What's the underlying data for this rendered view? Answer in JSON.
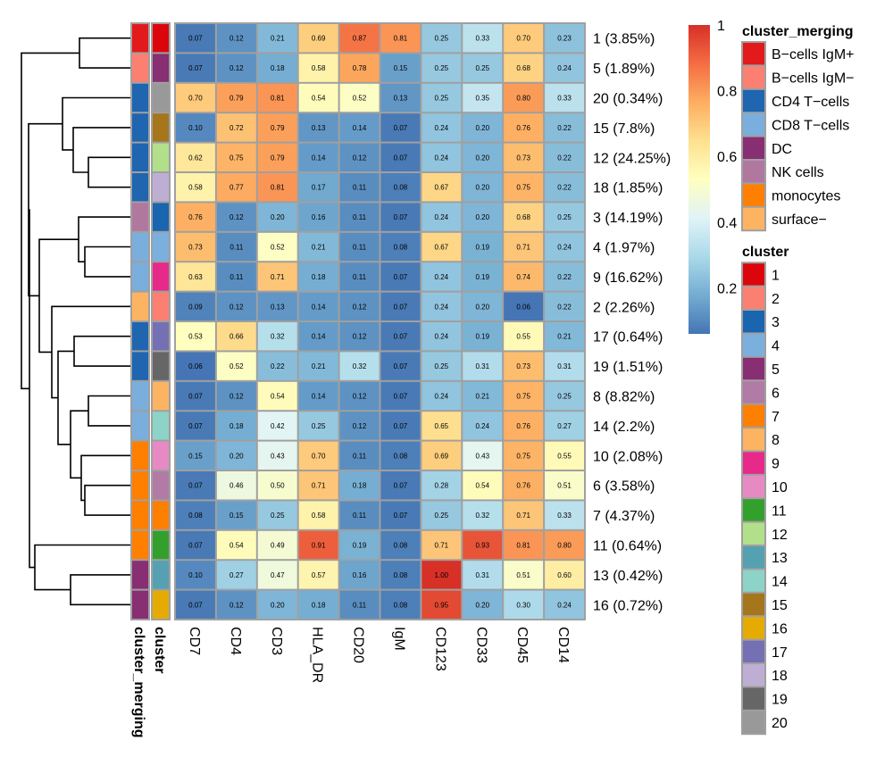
{
  "chart_data": {
    "type": "heatmap",
    "title": "",
    "columns": [
      "CD7",
      "CD4",
      "CD3",
      "HLA_DR",
      "CD20",
      "IgM",
      "CD123",
      "CD33",
      "CD45",
      "CD14"
    ],
    "rows": [
      {
        "cluster": "1",
        "label": "1 (3.85%)",
        "merging": "B-cells IgM+",
        "values": [
          0.07,
          0.12,
          0.21,
          0.69,
          0.87,
          0.81,
          0.25,
          0.33,
          0.7,
          0.23
        ]
      },
      {
        "cluster": "5",
        "label": "5 (1.89%)",
        "merging": "B-cells IgM-",
        "values": [
          0.07,
          0.12,
          0.18,
          0.58,
          0.78,
          0.15,
          0.25,
          0.25,
          0.68,
          0.24
        ]
      },
      {
        "cluster": "20",
        "label": "20 (0.34%)",
        "merging": "CD4 T-cells",
        "values": [
          0.7,
          0.79,
          0.81,
          0.54,
          0.52,
          0.13,
          0.25,
          0.35,
          0.8,
          0.33
        ]
      },
      {
        "cluster": "15",
        "label": "15 (7.8%)",
        "merging": "CD4 T-cells",
        "values": [
          0.1,
          0.72,
          0.79,
          0.13,
          0.14,
          0.07,
          0.24,
          0.2,
          0.76,
          0.22
        ]
      },
      {
        "cluster": "12",
        "label": "12 (24.25%)",
        "merging": "CD4 T-cells",
        "values": [
          0.62,
          0.75,
          0.79,
          0.14,
          0.12,
          0.07,
          0.24,
          0.2,
          0.73,
          0.22
        ]
      },
      {
        "cluster": "18",
        "label": "18 (1.85%)",
        "merging": "CD4 T-cells",
        "values": [
          0.58,
          0.77,
          0.81,
          0.17,
          0.11,
          0.08,
          0.67,
          0.2,
          0.75,
          0.22
        ]
      },
      {
        "cluster": "3",
        "label": "3 (14.19%)",
        "merging": "NK cells",
        "values": [
          0.76,
          0.12,
          0.2,
          0.16,
          0.11,
          0.07,
          0.24,
          0.2,
          0.68,
          0.25
        ]
      },
      {
        "cluster": "4",
        "label": "4 (1.97%)",
        "merging": "CD8 T-cells",
        "values": [
          0.73,
          0.11,
          0.52,
          0.21,
          0.11,
          0.08,
          0.67,
          0.19,
          0.71,
          0.24
        ]
      },
      {
        "cluster": "9",
        "label": "9 (16.62%)",
        "merging": "CD8 T-cells",
        "values": [
          0.63,
          0.11,
          0.71,
          0.18,
          0.11,
          0.07,
          0.24,
          0.19,
          0.74,
          0.22
        ]
      },
      {
        "cluster": "2",
        "label": "2 (2.26%)",
        "merging": "surface-",
        "values": [
          0.09,
          0.12,
          0.13,
          0.14,
          0.12,
          0.07,
          0.24,
          0.2,
          0.06,
          0.22
        ]
      },
      {
        "cluster": "17",
        "label": "17 (0.64%)",
        "merging": "CD4 T-cells",
        "values": [
          0.53,
          0.66,
          0.32,
          0.14,
          0.12,
          0.07,
          0.24,
          0.19,
          0.55,
          0.21
        ]
      },
      {
        "cluster": "19",
        "label": "19 (1.51%)",
        "merging": "CD4 T-cells",
        "values": [
          0.06,
          0.52,
          0.22,
          0.21,
          0.32,
          0.07,
          0.25,
          0.31,
          0.73,
          0.31
        ]
      },
      {
        "cluster": "8",
        "label": "8 (8.82%)",
        "merging": "CD8 T-cells",
        "values": [
          0.07,
          0.12,
          0.54,
          0.14,
          0.12,
          0.07,
          0.24,
          0.21,
          0.75,
          0.25
        ]
      },
      {
        "cluster": "14",
        "label": "14 (2.2%)",
        "merging": "CD8 T-cells",
        "values": [
          0.07,
          0.18,
          0.42,
          0.25,
          0.12,
          0.07,
          0.65,
          0.24,
          0.76,
          0.27
        ]
      },
      {
        "cluster": "10",
        "label": "10 (2.08%)",
        "merging": "monocytes",
        "values": [
          0.15,
          0.2,
          0.43,
          0.7,
          0.11,
          0.08,
          0.69,
          0.43,
          0.75,
          0.55
        ]
      },
      {
        "cluster": "6",
        "label": "6 (3.58%)",
        "merging": "monocytes",
        "values": [
          0.07,
          0.46,
          0.5,
          0.71,
          0.18,
          0.07,
          0.28,
          0.54,
          0.76,
          0.51
        ]
      },
      {
        "cluster": "7",
        "label": "7 (4.37%)",
        "merging": "monocytes",
        "values": [
          0.08,
          0.15,
          0.25,
          0.58,
          0.11,
          0.07,
          0.25,
          0.32,
          0.71,
          0.33
        ]
      },
      {
        "cluster": "11",
        "label": "11 (0.64%)",
        "merging": "monocytes",
        "values": [
          0.07,
          0.54,
          0.49,
          0.91,
          0.19,
          0.08,
          0.71,
          0.93,
          0.81,
          0.8
        ]
      },
      {
        "cluster": "13",
        "label": "13 (0.42%)",
        "merging": "DC",
        "values": [
          0.1,
          0.27,
          0.47,
          0.57,
          0.16,
          0.08,
          1.0,
          0.31,
          0.51,
          0.6
        ]
      },
      {
        "cluster": "16",
        "label": "16 (0.72%)",
        "merging": "DC",
        "values": [
          0.07,
          0.12,
          0.2,
          0.18,
          0.11,
          0.08,
          0.95,
          0.2,
          0.3,
          0.24
        ]
      }
    ],
    "color_scale": {
      "range": [
        0.06,
        1.0
      ],
      "ticks": [
        1,
        0.8,
        0.6,
        0.4,
        0.2
      ],
      "tick_labels": [
        "1",
        "0.8",
        "0.6",
        "0.4",
        "0.2"
      ],
      "palette": [
        "#4575b4",
        "#74add1",
        "#abd9e9",
        "#e0f3f8",
        "#ffffbf",
        "#fee090",
        "#fdae61",
        "#f46d43",
        "#d73027"
      ]
    },
    "annotation_labels": [
      "cluster_merging",
      "cluster"
    ],
    "legends": [
      {
        "title": "cluster_merging",
        "items": [
          {
            "label": "B−cells IgM+",
            "key": "B-cells IgM+",
            "color": "#e31a1c"
          },
          {
            "label": "B−cells IgM−",
            "key": "B-cells IgM-",
            "color": "#fb8072"
          },
          {
            "label": "CD4 T−cells",
            "key": "CD4 T-cells",
            "color": "#1f65b0"
          },
          {
            "label": "CD8 T−cells",
            "key": "CD8 T-cells",
            "color": "#7aaedc"
          },
          {
            "label": "DC",
            "key": "DC",
            "color": "#882e72"
          },
          {
            "label": "NK cells",
            "key": "NK cells",
            "color": "#b1789f"
          },
          {
            "label": "monocytes",
            "key": "monocytes",
            "color": "#ff7f00"
          },
          {
            "label": "surface−",
            "key": "surface-",
            "color": "#fdb462"
          }
        ]
      },
      {
        "title": "cluster",
        "items": [
          {
            "label": "1",
            "color": "#dc050c"
          },
          {
            "label": "2",
            "color": "#fb8072"
          },
          {
            "label": "3",
            "color": "#1965b0"
          },
          {
            "label": "4",
            "color": "#7bafde"
          },
          {
            "label": "5",
            "color": "#882e72"
          },
          {
            "label": "6",
            "color": "#b17ba6"
          },
          {
            "label": "7",
            "color": "#ff7f00"
          },
          {
            "label": "8",
            "color": "#fdb462"
          },
          {
            "label": "9",
            "color": "#e7298a"
          },
          {
            "label": "10",
            "color": "#e78ac3"
          },
          {
            "label": "11",
            "color": "#33a02c"
          },
          {
            "label": "12",
            "color": "#b2df8a"
          },
          {
            "label": "13",
            "color": "#55a1b1"
          },
          {
            "label": "14",
            "color": "#8dd3c7"
          },
          {
            "label": "15",
            "color": "#a6761d"
          },
          {
            "label": "16",
            "color": "#e6ab02"
          },
          {
            "label": "17",
            "color": "#7570b3"
          },
          {
            "label": "18",
            "color": "#beaed4"
          },
          {
            "label": "19",
            "color": "#666666"
          },
          {
            "label": "20",
            "color": "#999999"
          }
        ]
      }
    ],
    "dendrogram": {
      "side": "left",
      "merges": [
        [
          0,
          1
        ],
        [
          4,
          5
        ],
        [
          3,
          "m1"
        ],
        [
          2,
          "m2"
        ],
        [
          7,
          8
        ],
        [
          6,
          "m4"
        ],
        [
          10,
          11
        ],
        [
          12,
          13
        ],
        [
          15,
          16
        ],
        [
          14,
          "m8"
        ],
        [
          "m7",
          "m9"
        ],
        [
          "m6",
          "m10"
        ],
        [
          9,
          "m11"
        ],
        [
          "m5",
          "m12"
        ],
        [
          "m3",
          "m13"
        ],
        [
          18,
          19
        ],
        [
          17,
          "m15"
        ],
        [
          "m14",
          "m16"
        ],
        [
          "m0",
          "m17"
        ]
      ]
    }
  }
}
